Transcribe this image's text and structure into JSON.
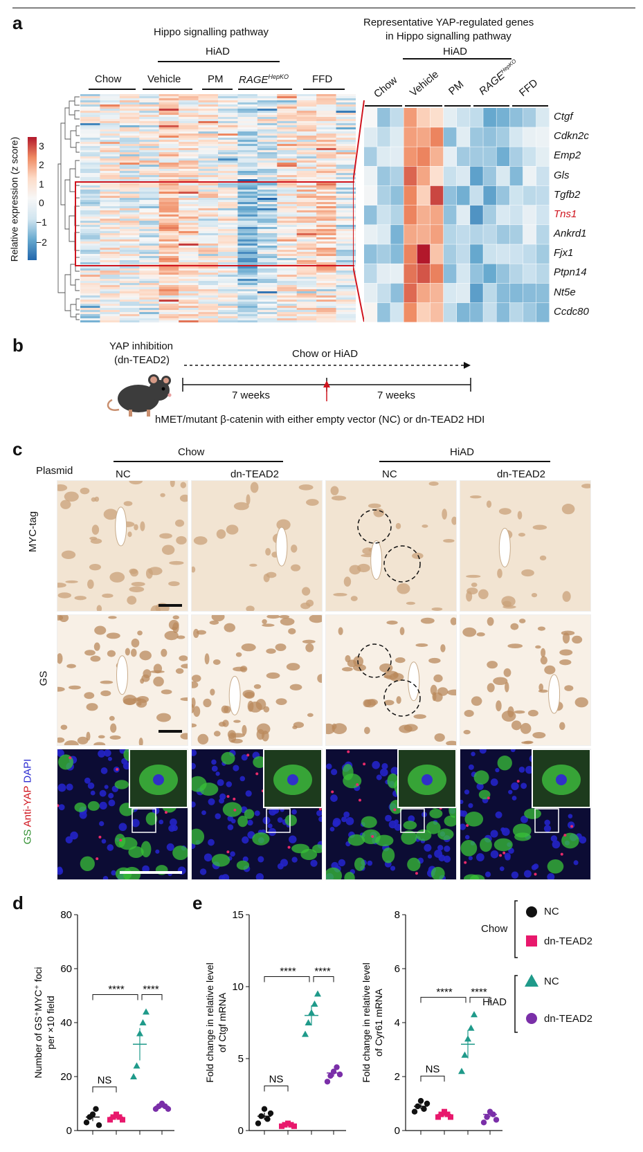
{
  "panels": {
    "a": "a",
    "b": "b",
    "c": "c",
    "d": "d",
    "e": "e"
  },
  "a": {
    "title": "Hippo signalling pathway",
    "hiad": "HiAD",
    "groups": [
      "Chow",
      "Vehicle",
      "PM",
      "RAGE",
      "FFD"
    ],
    "rage_sup": "HepKO",
    "colorbar_label": "Relative expression (z score)",
    "colorbar_ticks": [
      "3",
      "2",
      "1",
      "0",
      "−1",
      "−2"
    ],
    "right_title_line1": "Representative YAP-regulated genes",
    "right_title_line2": "in Hippo signalling pathway",
    "genes": [
      "Ctgf",
      "Cdkn2c",
      "Emp2",
      "Gls",
      "Tgfb2",
      "Tns1",
      "Ankrd1",
      "Fjx1",
      "Ptpn14",
      "Nt5e",
      "Ccdc80"
    ],
    "highlight_gene_color": "#d0141e"
  },
  "b": {
    "inhibition_line1": "YAP inhibition",
    "inhibition_line2": "(dn-TEAD2)",
    "diet": "Chow or HiAD",
    "weeks1": "7 weeks",
    "weeks2": "7 weeks",
    "caption": "hMET/mutant β-catenin with either empty vector (NC) or dn-TEAD2 HDI"
  },
  "c": {
    "chow": "Chow",
    "hiad": "HiAD",
    "plasmid": "Plasmid",
    "cols": [
      "NC",
      "dn-TEAD2",
      "NC",
      "dn-TEAD2"
    ],
    "row1": "MYC-tag",
    "row2": "GS",
    "row3_gs": "GS",
    "row3_yap": "Anti-YAP",
    "row3_dapi": "DAPI"
  },
  "d": {
    "ylabel_line1": "Number of GS⁺MYC⁺ foci",
    "ylabel_line2": "per ×10 field",
    "yticks": [
      "80",
      "60",
      "40",
      "20",
      "0"
    ],
    "sig_ns": "NS",
    "sig_1": "****",
    "sig_2": "****"
  },
  "e1": {
    "ylabel_line1": "Fold change in relative level",
    "ylabel_line2": "of Ctgf mRNA",
    "yticks": [
      "15",
      "10",
      "5",
      "0"
    ],
    "sig_ns": "NS",
    "sig_1": "****",
    "sig_2": "****"
  },
  "e2": {
    "ylabel_line1": "Fold change in relative level",
    "ylabel_line2": "of Cyr61 mRNA",
    "yticks": [
      "8",
      "6",
      "4",
      "2",
      "0"
    ],
    "sig_ns": "NS",
    "sig_1": "****",
    "sig_2": "****"
  },
  "legend": {
    "chow": "Chow",
    "hiad": "HiAD",
    "items": [
      "NC",
      "dn-TEAD2",
      "NC",
      "dn-TEAD2"
    ]
  },
  "colors": {
    "nc_chow": "#111111",
    "dn_chow": "#e8186c",
    "nc_hiad": "#1f9a8a",
    "dn_hiad": "#7a2fa8"
  },
  "chart_data": [
    {
      "type": "scatter",
      "panel": "d",
      "categories": [
        "Chow NC",
        "Chow dn-TEAD2",
        "HiAD NC",
        "HiAD dn-TEAD2"
      ],
      "means": [
        5,
        5,
        32,
        9
      ],
      "points": [
        [
          3,
          5,
          6,
          8,
          2
        ],
        [
          4,
          5,
          6,
          5,
          4
        ],
        [
          20,
          24,
          36,
          40,
          44
        ],
        [
          8,
          9,
          10,
          9,
          8
        ]
      ],
      "ylim": [
        0,
        80
      ]
    },
    {
      "type": "scatter",
      "panel": "e-ctgf",
      "categories": [
        "Chow NC",
        "Chow dn-TEAD2",
        "HiAD NC",
        "HiAD dn-TEAD2"
      ],
      "means": [
        1.0,
        0.4,
        8.0,
        4.0
      ],
      "points": [
        [
          0.5,
          1.0,
          1.5,
          0.8,
          1.2
        ],
        [
          0.3,
          0.4,
          0.5,
          0.4,
          0.3
        ],
        [
          6.7,
          7.5,
          8.2,
          8.8,
          9.5
        ],
        [
          3.4,
          3.8,
          4.1,
          4.4,
          3.9
        ]
      ],
      "ylim": [
        0,
        15
      ]
    },
    {
      "type": "scatter",
      "panel": "e-cyr61",
      "categories": [
        "Chow NC",
        "Chow dn-TEAD2",
        "HiAD NC",
        "HiAD dn-TEAD2"
      ],
      "means": [
        0.9,
        0.6,
        3.2,
        0.6
      ],
      "points": [
        [
          0.7,
          0.9,
          1.1,
          0.8,
          1.0
        ],
        [
          0.5,
          0.6,
          0.7,
          0.6,
          0.5
        ],
        [
          2.2,
          2.8,
          3.4,
          3.8,
          4.3
        ],
        [
          0.3,
          0.5,
          0.7,
          0.6,
          0.4
        ]
      ],
      "ylim": [
        0,
        8
      ]
    }
  ]
}
